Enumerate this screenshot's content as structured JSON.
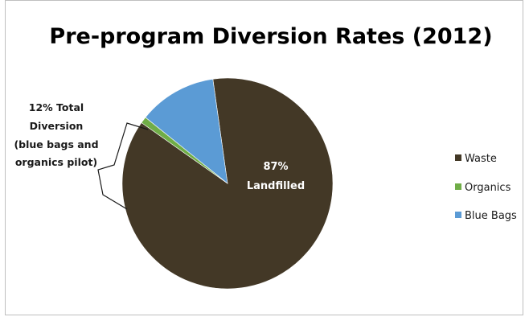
{
  "chart_data": {
    "type": "pie",
    "title": "Pre-program Diversion Rates (2012)",
    "slices": [
      {
        "name": "Waste",
        "value": 87,
        "color": "#433826"
      },
      {
        "name": "Organics",
        "value": 1,
        "color": "#70ad47"
      },
      {
        "name": "Blue Bags",
        "value": 12,
        "color": "#5b9bd5"
      }
    ],
    "annotations": {
      "diversion": [
        "12% Total",
        "Diversion",
        "(blue bags and",
        "organics pilot)"
      ],
      "landfilled": [
        "87%",
        "Landfilled"
      ]
    },
    "legend": {
      "placement": "right",
      "entries": [
        "Waste",
        "Organics",
        "Blue Bags"
      ]
    }
  }
}
